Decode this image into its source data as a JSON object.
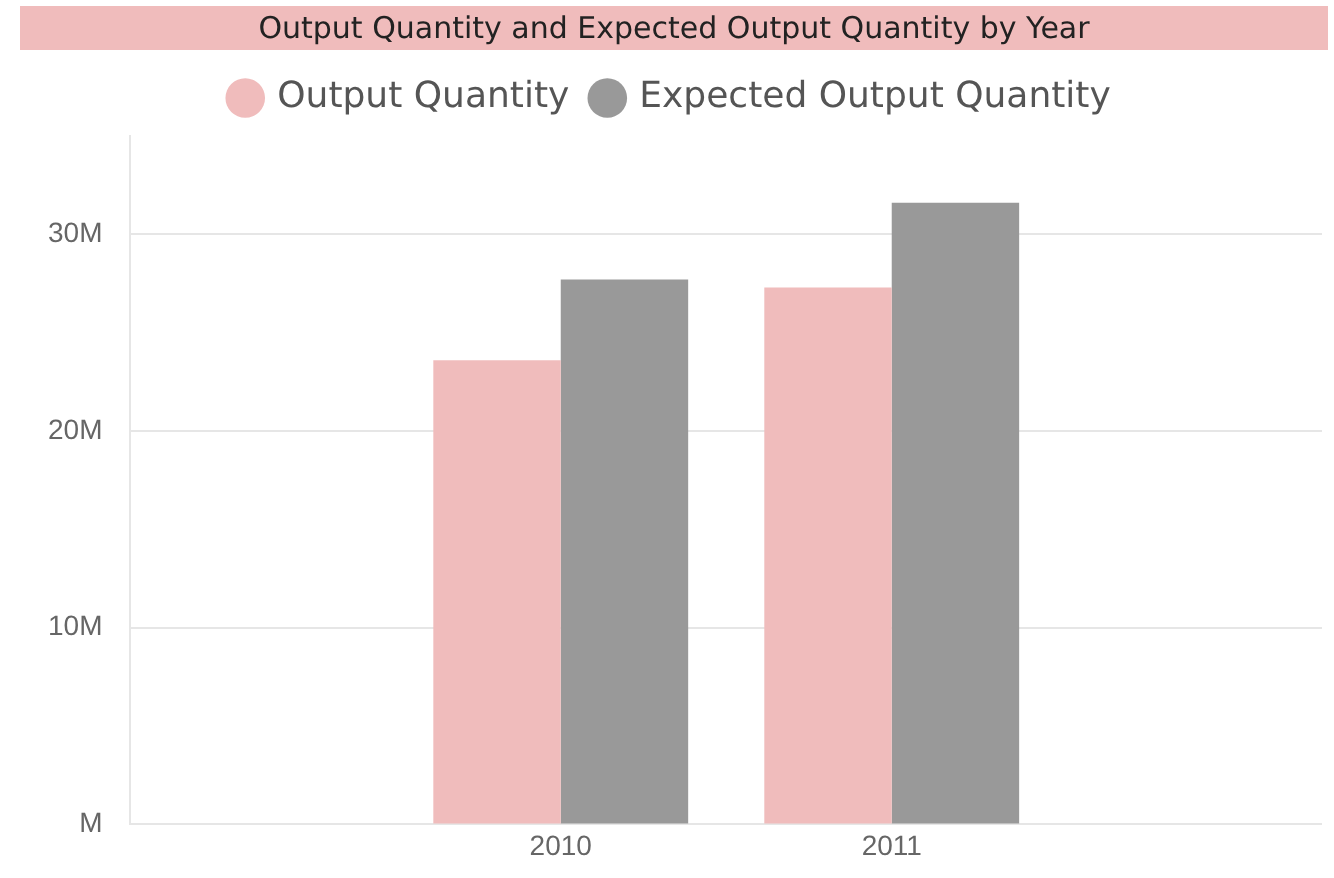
{
  "chart_data": {
    "type": "bar",
    "title": "Output Quantity and Expected Output Quantity by Year",
    "categories": [
      "2010",
      "2011"
    ],
    "series": [
      {
        "name": "Output Quantity",
        "color": "#f0bcbc",
        "values": [
          23600000,
          27300000
        ]
      },
      {
        "name": "Expected Output Quantity",
        "color": "#999999",
        "values": [
          27700000,
          31600000
        ]
      }
    ],
    "ylim": [
      0,
      35000000
    ],
    "yticks": [
      {
        "value": 0,
        "label": "M"
      },
      {
        "value": 10000000,
        "label": "10M"
      },
      {
        "value": 20000000,
        "label": "20M"
      },
      {
        "value": 30000000,
        "label": "30M"
      }
    ],
    "grid": "y",
    "legend": "top"
  }
}
